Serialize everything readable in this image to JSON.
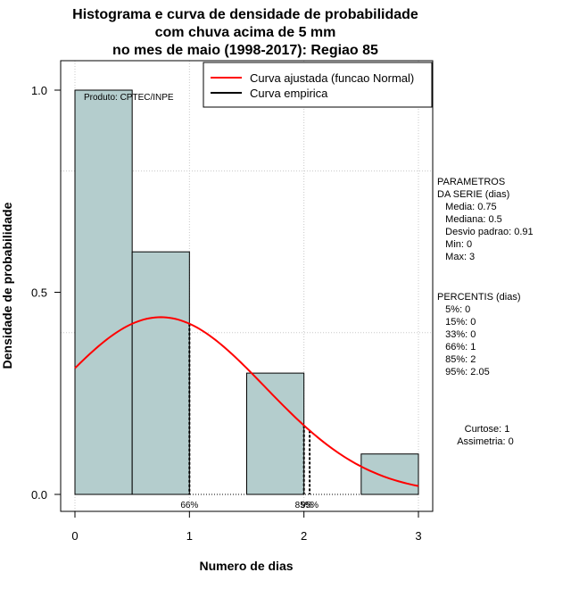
{
  "chart_data": {
    "type": "bar",
    "title_lines": [
      "Histograma e curva de densidade de probabilidade",
      "com chuva acima de 5 mm",
      "no mes de maio (1998-2017): Regiao 85"
    ],
    "xlabel": "Numero de dias",
    "ylabel": "Densidade de probabilidade",
    "xlim": [
      -0.12,
      3.12
    ],
    "ylim": [
      -0.04,
      1.07
    ],
    "xticks": [
      "0",
      "1",
      "2",
      "3"
    ],
    "yticks": [
      "0.0",
      "0.5",
      "1.0"
    ],
    "grid": true,
    "bins": [
      {
        "from": 0.0,
        "to": 0.5,
        "density": 1.0
      },
      {
        "from": 0.5,
        "to": 1.0,
        "density": 0.6
      },
      {
        "from": 1.0,
        "to": 1.5,
        "density": 0.0
      },
      {
        "from": 1.5,
        "to": 2.0,
        "density": 0.3
      },
      {
        "from": 2.0,
        "to": 2.5,
        "density": 0.0
      },
      {
        "from": 2.5,
        "to": 3.0,
        "density": 0.1
      }
    ],
    "fitted_curve": {
      "name": "Curva ajustada (funcao Normal)",
      "mean": 0.75,
      "sd": 0.91,
      "color": "#ff0000"
    },
    "empirical_curve": {
      "name": "Curva empirica",
      "color": "#000000"
    },
    "percentile_lines": [
      {
        "x": 1.0,
        "label": "66%"
      },
      {
        "x": 2.0,
        "label": "85%"
      },
      {
        "x": 2.05,
        "label": "95%"
      }
    ],
    "bar_color": "#b4cdcd",
    "legend_position": "top-right"
  },
  "credit": "Produto: CPTEC/INPE",
  "side_panel": {
    "parametros": [
      "PARAMETROS",
      "DA SERIE (dias)",
      "   Media: 0.75",
      "   Mediana: 0.5",
      "   Desvio padrao: 0.91",
      "   Min: 0",
      "   Max: 3"
    ],
    "percentis": [
      "PERCENTIS (dias)",
      "   5%: 0",
      "   15%: 0",
      "   33%: 0",
      "   66%: 1",
      "   85%: 2",
      "   95%: 2.05"
    ],
    "curtose": "Curtose: 1",
    "assimetria": "Assimetria: 0"
  }
}
